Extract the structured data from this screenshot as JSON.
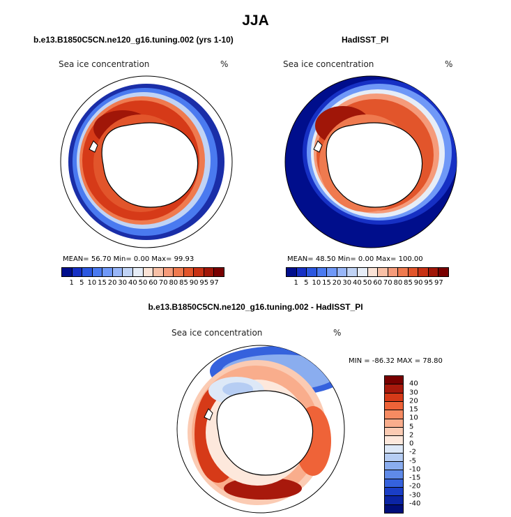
{
  "figure_title": "JJA",
  "panel1": {
    "title": "b.e13.B1850C5CN.ne120_g16.tuning.002 (yrs 1-10)",
    "left_string": "Sea ice concentration",
    "right_string": "%",
    "stats": "MEAN=  56.70  Min=    0.00   Max=    99.93"
  },
  "panel2": {
    "title": "HadISST_PI",
    "left_string": "Sea ice concentration",
    "right_string": "%",
    "stats": "MEAN=  48.50  Min=    0.00   Max= 100.00"
  },
  "panel3": {
    "title": "b.e13.B1850C5CN.ne120_g16.tuning.002 - HadISST_PI",
    "left_string": "Sea ice concentration",
    "right_string": "%",
    "stats": "MIN = -86.32 MAX =  78.80"
  },
  "colorbar_conc": {
    "labels": [
      "1",
      "5",
      "10",
      "15",
      "20",
      "30",
      "40",
      "50",
      "60",
      "70",
      "80",
      "85",
      "90",
      "95",
      "97"
    ],
    "colors": [
      "#000e8c",
      "#1630c4",
      "#2b57e0",
      "#4a7af0",
      "#6f98f7",
      "#98b6f8",
      "#c0d3f5",
      "#e6edf7",
      "#fbe3d6",
      "#f8c0a6",
      "#f59b7a",
      "#ef7a4f",
      "#e2552b",
      "#c73114",
      "#a01608",
      "#780000"
    ]
  },
  "colorbar_diff": {
    "labels": [
      "40",
      "30",
      "20",
      "15",
      "10",
      "5",
      "2",
      "0",
      "-2",
      "-5",
      "-10",
      "-15",
      "-20",
      "-30",
      "-40"
    ],
    "colors": [
      "#780000",
      "#a8190c",
      "#d63a18",
      "#ef6338",
      "#f68b62",
      "#f9ad8c",
      "#fbcbb3",
      "#fde8dc",
      "#dde8f7",
      "#b6cdf3",
      "#8aadef",
      "#5f8ae8",
      "#3562dd",
      "#1a3ec6",
      "#0b24a4",
      "#000e7a"
    ]
  }
}
